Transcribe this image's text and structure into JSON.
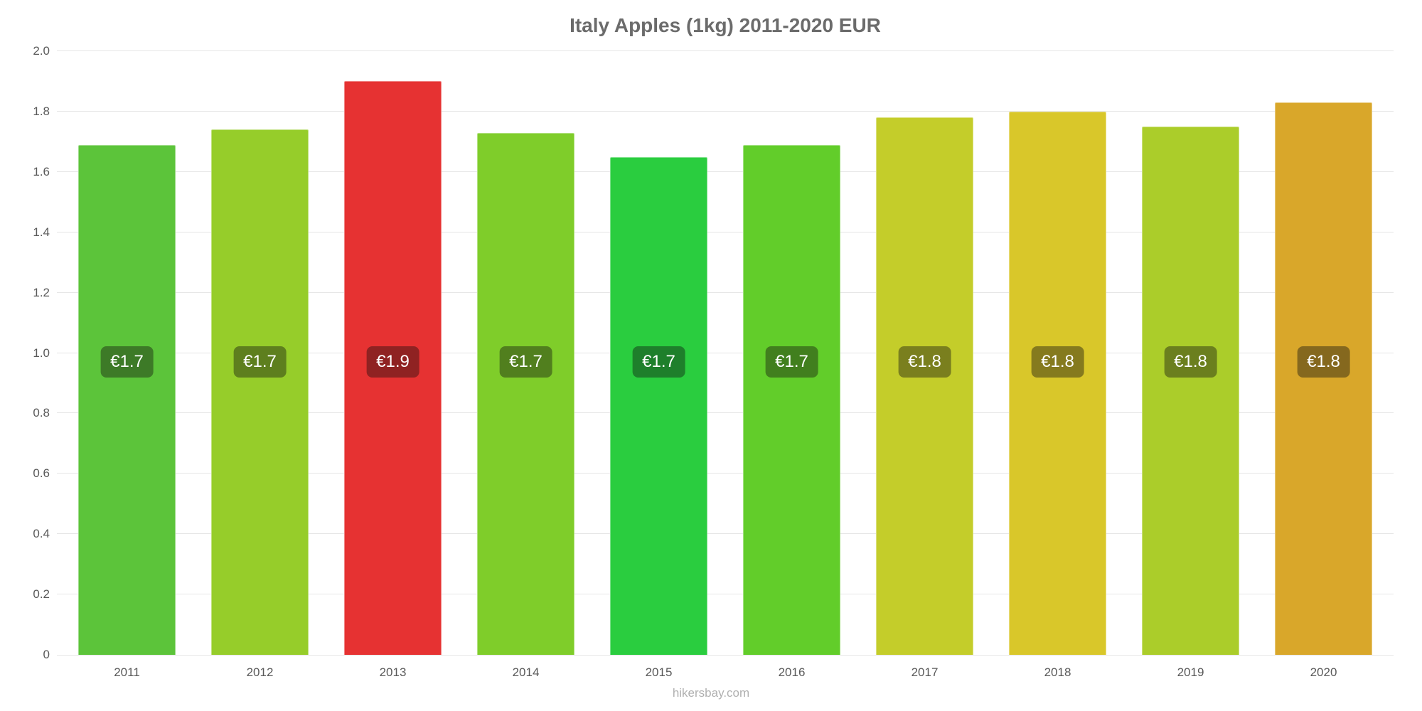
{
  "chart": {
    "type": "bar",
    "title": "Italy Apples (1kg) 2011-2020 EUR",
    "title_fontsize": 28,
    "title_color": "#6b6b6b",
    "background_color": "#ffffff",
    "grid_color": "#e6e6e6",
    "axis_label_color": "#595959",
    "axis_label_fontsize": 17,
    "ylim": [
      0,
      2.0
    ],
    "ytick_step": 0.2,
    "yticks": [
      "0",
      "0.2",
      "0.4",
      "0.6",
      "0.8",
      "1.0",
      "1.2",
      "1.4",
      "1.6",
      "1.8",
      "2.0"
    ],
    "categories": [
      "2011",
      "2012",
      "2013",
      "2014",
      "2015",
      "2016",
      "2017",
      "2018",
      "2019",
      "2020"
    ],
    "values": [
      1.69,
      1.74,
      1.9,
      1.73,
      1.65,
      1.69,
      1.78,
      1.8,
      1.75,
      1.83
    ],
    "value_labels": [
      "€1.7",
      "€1.7",
      "€1.9",
      "€1.7",
      "€1.7",
      "€1.7",
      "€1.8",
      "€1.8",
      "€1.8",
      "€1.8"
    ],
    "bar_colors": [
      "#5cc43a",
      "#96cd2a",
      "#e63232",
      "#7fcd2a",
      "#2acd3f",
      "#62cd2a",
      "#c4cd2a",
      "#d9c72a",
      "#abcd2a",
      "#d9a72a"
    ],
    "label_bg_colors": [
      "#3d7a27",
      "#5e7f1e",
      "#8f2222",
      "#517f1e",
      "#1e7f2b",
      "#417f1e",
      "#7a7f1e",
      "#857a1e",
      "#6b7f1e",
      "#85681e"
    ],
    "label_fontsize": 24,
    "label_color": "#ffffff",
    "label_y_value": 0.97,
    "footer_text": "hikersbay.com",
    "footer_color": "#b0b0b0",
    "footer_fontsize": 17
  }
}
